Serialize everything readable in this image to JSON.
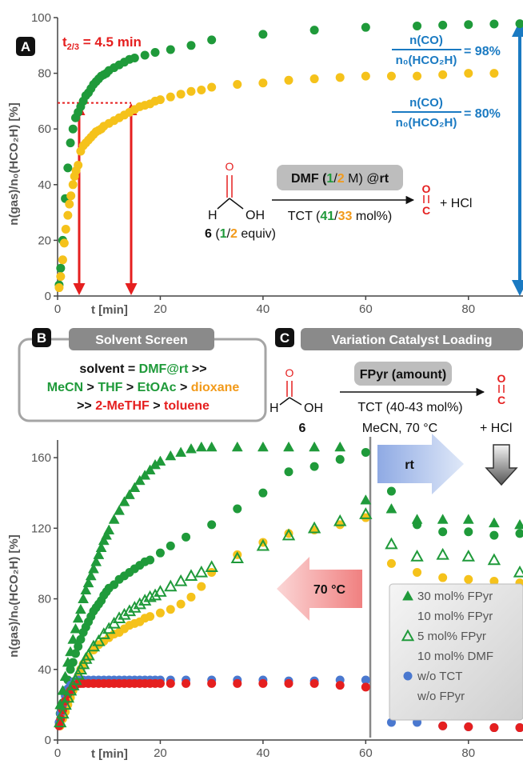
{
  "colors": {
    "green": "#1f9a3a",
    "green_light": "#3dba64",
    "yellow": "#f5c21b",
    "blue": "#4a78cf",
    "red": "#e51f1f",
    "ann_blue": "#1a7ac2",
    "orange": "#f29a1a",
    "gray_box": "#8a8a8a"
  },
  "panel_a": {
    "letter": "A",
    "t_half_base": "t",
    "t_half_sub": "2/3",
    "t_half_rest": " = 4.5 min",
    "ratio_num": "n(CO)",
    "ratio_den": "n₀(HCO₂H)",
    "ratio1_value": "= 98%",
    "ratio2_value": "= 80%",
    "scheme_top": [
      "DMF (",
      "1",
      "/",
      "2",
      " M) @",
      "rt"
    ],
    "scheme_bottom": [
      "TCT (",
      "41",
      "/",
      "33",
      " mol%)"
    ],
    "formic_o": "O",
    "formic_h": "H",
    "formic_oh": "OH",
    "compound_label": [
      "6",
      " (",
      "1",
      "/",
      "2",
      " equiv)"
    ],
    "co_top": "O",
    "co_bottom": "C",
    "plus_hcl": "+ HCl"
  },
  "panel_b": {
    "letter": "B",
    "title": "Solvent Screen",
    "line1": [
      "solvent = ",
      "DMF@rt",
      " >>"
    ],
    "line2": [
      "MeCN",
      " > ",
      "THF",
      " > ",
      "EtOAc",
      " > ",
      "dioxane"
    ],
    "line3": [
      ">> ",
      "2-MeTHF",
      " > ",
      "toluene"
    ]
  },
  "panel_c": {
    "letter": "C",
    "title": "Variation Catalyst Loading",
    "reagent_box": "FPyr (amount)",
    "conditions1": "TCT (40-43 mol%)",
    "conditions2": "MeCN, 70 °C",
    "formic_o": "O",
    "formic_h": "H",
    "formic_oh": "OH",
    "compound": "6",
    "co_top": "O",
    "co_bottom": "C",
    "plus_hcl": "+ HCl",
    "rt_label": "rt",
    "hot_label": "70 °C",
    "legend": [
      {
        "label": "30 mol% FPyr",
        "marker": "triangle",
        "color": "#1f9a3a"
      },
      {
        "label": "10 mol% FPyr",
        "marker": "circle",
        "color": "#1f9a3a"
      },
      {
        "label": "5 mol% FPyr",
        "marker": "triangle-open",
        "color": "#1f9a3a"
      },
      {
        "label": "10 mol% DMF",
        "marker": "circle",
        "color": "#f5c21b"
      },
      {
        "label": "w/o TCT",
        "marker": "circle",
        "color": "#4a78cf"
      },
      {
        "label": "w/o FPyr",
        "marker": "circle",
        "color": "#e51f1f"
      }
    ]
  },
  "chart_data": [
    {
      "type": "scatter",
      "xlabel": "t [min]",
      "ylabel": "n(gas)/n₀(HCO₂H)  [%]",
      "xlim": [
        0,
        90
      ],
      "ylim": [
        0,
        100
      ],
      "xticks": [
        "0",
        "20",
        "40",
        "60",
        "80"
      ],
      "yticks": [
        "0",
        "20",
        "40",
        "60",
        "80",
        "100"
      ],
      "series": [
        {
          "color": "#1f9a3a",
          "x": [
            0.3,
            0.6,
            1,
            1.5,
            2,
            2.5,
            3,
            3.5,
            4,
            4.5,
            5,
            5.5,
            6,
            6.5,
            7,
            7.5,
            8,
            8.5,
            9,
            9.5,
            10,
            11,
            12,
            13,
            14,
            15,
            17,
            19,
            22,
            26,
            30,
            40,
            50,
            60,
            70,
            75,
            80,
            85,
            90
          ],
          "y": [
            4,
            10,
            20,
            35,
            46,
            55,
            60,
            64,
            66,
            68,
            70,
            72,
            73,
            74.5,
            76,
            77,
            78,
            79,
            79.5,
            80,
            81,
            82,
            83,
            84,
            85,
            85.5,
            86.5,
            87.5,
            88.5,
            90,
            92,
            94,
            95.5,
            96.5,
            97,
            97.3,
            97.5,
            97.7,
            97.8
          ]
        },
        {
          "color": "#f5c21b",
          "x": [
            0.3,
            0.6,
            1,
            1.3,
            1.6,
            2,
            2.3,
            2.6,
            3,
            3.3,
            3.6,
            4,
            4.5,
            5,
            5.5,
            6,
            6.5,
            7,
            7.5,
            8,
            8.5,
            9,
            10,
            11,
            12,
            13,
            14,
            15,
            16,
            17,
            18,
            19,
            20,
            22,
            24,
            26,
            28,
            30,
            35,
            40,
            45,
            50,
            55,
            60,
            65,
            70,
            75,
            80,
            85
          ],
          "y": [
            3,
            7,
            13,
            19,
            24,
            29,
            33,
            36,
            40,
            43,
            45,
            47,
            52,
            54,
            55,
            56,
            57,
            58,
            59,
            59.5,
            60,
            61,
            62,
            63,
            64,
            65,
            66,
            67,
            68,
            68.5,
            69,
            70,
            70.5,
            71.5,
            72.5,
            73.5,
            74,
            75,
            76,
            76.5,
            77.5,
            78,
            78.5,
            79,
            79,
            79,
            79.5,
            80,
            80
          ]
        }
      ]
    },
    {
      "type": "scatter",
      "xlabel": "t [min]",
      "ylabel": "n(gas)/n₀(HCO₂H)  [%]",
      "xlim": [
        0,
        90
      ],
      "ylim": [
        0,
        170
      ],
      "xticks": [
        "0",
        "20",
        "40",
        "60",
        "80"
      ],
      "yticks": [
        "0",
        "40",
        "80",
        "120",
        "160"
      ],
      "series": [
        {
          "name": "30 mol% FPyr",
          "color": "#1f9a3a",
          "marker": "triangle",
          "x": [
            0.5,
            1,
            1.5,
            2,
            2.5,
            3,
            3.5,
            4,
            4.5,
            5,
            5.5,
            6,
            6.5,
            7,
            7.5,
            8,
            8.5,
            9,
            9.5,
            10,
            11,
            12,
            13,
            14,
            15,
            16,
            17,
            18,
            19,
            20,
            22,
            24,
            26,
            28,
            30,
            35,
            40,
            45,
            50,
            55,
            60,
            65,
            70,
            75,
            80,
            85,
            90
          ],
          "y": [
            20,
            28,
            36,
            44,
            50,
            57,
            63,
            69,
            74,
            80,
            85,
            89,
            93,
            97,
            101,
            105,
            109,
            113,
            116,
            119,
            125,
            130,
            135,
            139,
            143,
            147,
            150,
            153,
            156,
            158,
            161,
            163,
            165,
            166,
            166,
            166,
            166,
            166,
            166,
            166,
            136,
            131,
            125,
            125,
            125,
            123,
            122
          ]
        },
        {
          "name": "10 mol% FPyr",
          "color": "#1f9a3a",
          "marker": "circle",
          "x": [
            0.5,
            1,
            1.5,
            2,
            2.5,
            3,
            3.5,
            4,
            4.5,
            5,
            5.5,
            6,
            6.5,
            7,
            7.5,
            8,
            8.5,
            9,
            9.5,
            10,
            11,
            12,
            13,
            14,
            15,
            16,
            17,
            18,
            20,
            22,
            25,
            30,
            35,
            40,
            45,
            50,
            55,
            60,
            65,
            70,
            75,
            80,
            85,
            90
          ],
          "y": [
            15,
            21,
            28,
            34,
            40,
            44,
            49,
            53,
            57,
            61,
            64,
            67,
            70,
            73,
            75,
            77,
            79,
            82,
            84,
            86,
            88,
            91,
            93,
            95,
            97,
            99,
            101,
            102,
            106,
            110,
            115,
            122,
            131,
            140,
            152,
            155,
            159,
            163,
            141,
            122,
            118,
            118,
            116,
            117
          ]
        },
        {
          "name": "5 mol% FPyr",
          "color": "#1f9a3a",
          "marker": "triangle-open",
          "x": [
            0.5,
            1,
            1.5,
            2,
            2.5,
            3,
            3.5,
            4,
            4.5,
            5,
            5.5,
            6,
            7,
            8,
            9,
            10,
            11,
            12,
            13,
            14,
            15,
            16,
            17,
            18,
            19,
            20,
            22,
            24,
            26,
            28,
            30,
            35,
            40,
            45,
            50,
            55,
            60,
            65,
            70,
            75,
            80,
            85,
            90
          ],
          "y": [
            10,
            15,
            20,
            24,
            28,
            31,
            34,
            37,
            40,
            43,
            46,
            48,
            53,
            56,
            60,
            63,
            66,
            69,
            71,
            73,
            75,
            77,
            79,
            81,
            82,
            84,
            87,
            90,
            93,
            95,
            98,
            103,
            110,
            116,
            120,
            124,
            128,
            111,
            104,
            105,
            104,
            102,
            95
          ]
        },
        {
          "name": "10 mol% DMF",
          "color": "#f5c21b",
          "marker": "circle",
          "x": [
            0.5,
            1,
            1.5,
            2,
            2.5,
            3,
            3.5,
            4,
            4.5,
            5,
            6,
            7,
            8,
            9,
            10,
            11,
            12,
            13,
            14,
            15,
            16,
            17,
            18,
            20,
            22,
            24,
            26,
            28,
            30,
            35,
            40,
            45,
            50,
            55,
            60,
            65,
            70,
            75,
            80,
            85,
            90
          ],
          "y": [
            8,
            12,
            16,
            20,
            24,
            28,
            32,
            36,
            40,
            43,
            47,
            51,
            54,
            56,
            58,
            60,
            61,
            63,
            65,
            66,
            67,
            69,
            70,
            72,
            74,
            77,
            81,
            87,
            95,
            105,
            112,
            117,
            119,
            122,
            126,
            100,
            95,
            92,
            91,
            90,
            89
          ]
        },
        {
          "name": "w/o TCT",
          "color": "#4a78cf",
          "marker": "circle",
          "x": [
            0.3,
            0.6,
            1,
            1.5,
            2,
            2.5,
            3,
            3.5,
            4,
            4.5,
            5,
            6,
            7,
            8,
            9,
            10,
            11,
            12,
            13,
            14,
            15,
            16,
            17,
            18,
            19,
            20,
            22,
            25,
            30,
            35,
            40,
            45,
            50,
            55,
            60,
            65,
            70,
            75,
            80,
            85,
            90
          ],
          "y": [
            10,
            15,
            20,
            25,
            29,
            31,
            33,
            33,
            34,
            34,
            34,
            34,
            34,
            34,
            34,
            34,
            34,
            34,
            34,
            34,
            34,
            34,
            34,
            34,
            34,
            34,
            34,
            34,
            34,
            34,
            34,
            33.5,
            33.5,
            34,
            34,
            10,
            10,
            8,
            7.5,
            7,
            7
          ]
        },
        {
          "name": "w/o FPyr",
          "color": "#e51f1f",
          "marker": "circle",
          "x": [
            0.3,
            0.6,
            1,
            1.5,
            2,
            2.5,
            3,
            3.5,
            4,
            4.5,
            5,
            6,
            7,
            8,
            9,
            10,
            11,
            12,
            13,
            14,
            15,
            16,
            17,
            18,
            19,
            20,
            22,
            25,
            30,
            35,
            40,
            45,
            50,
            55,
            60,
            65,
            70,
            75,
            80,
            85,
            90
          ],
          "y": [
            8,
            12,
            17,
            22,
            26,
            28,
            30,
            31,
            32,
            32,
            32,
            32,
            32,
            32,
            32,
            32,
            32,
            32,
            32,
            32,
            32,
            32,
            32,
            32,
            32,
            32,
            32,
            32,
            32,
            32,
            32,
            32,
            32,
            31,
            30,
            null,
            null,
            8,
            7.5,
            7,
            7
          ]
        }
      ]
    }
  ]
}
